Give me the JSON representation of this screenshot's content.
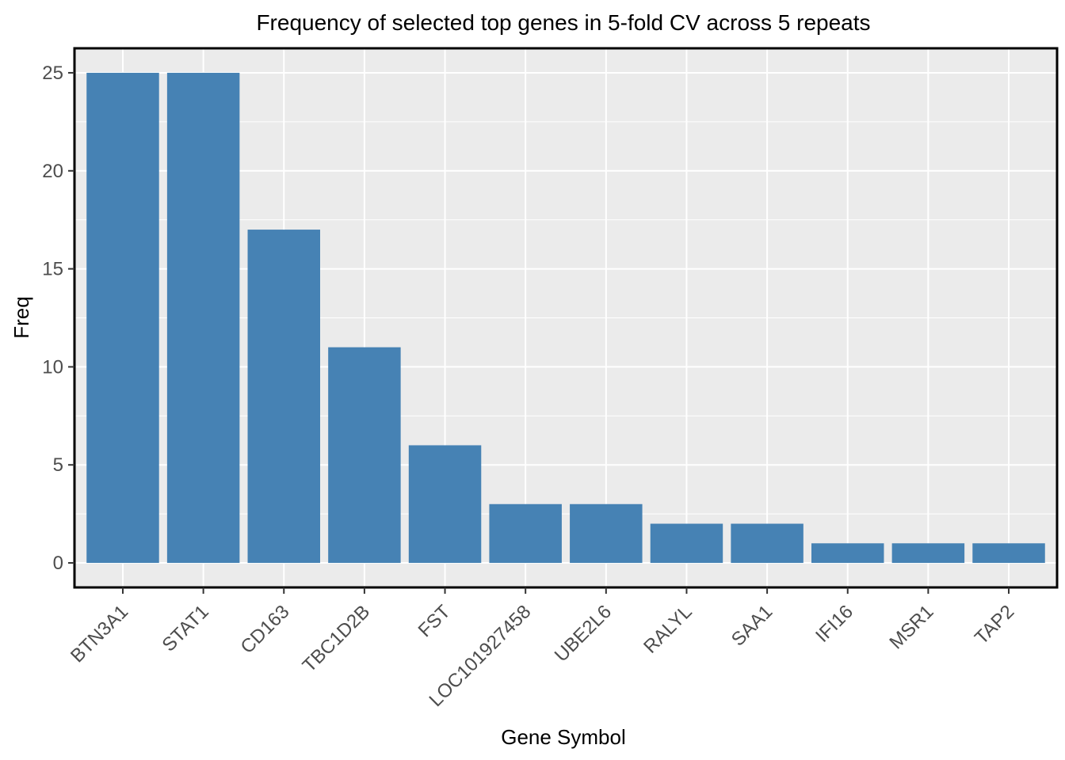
{
  "chart_data": {
    "type": "bar",
    "title": "Frequency of selected top genes in 5-fold CV across 5 repeats",
    "xlabel": "Gene Symbol",
    "ylabel": "Freq",
    "categories": [
      "BTN3A1",
      "STAT1",
      "CD163",
      "TBC1D2B",
      "FST",
      "LOC101927458",
      "UBE2L6",
      "RALYL",
      "SAA1",
      "IFI16",
      "MSR1",
      "TAP2"
    ],
    "values": [
      25,
      25,
      17,
      11,
      6,
      3,
      3,
      2,
      2,
      1,
      1,
      1
    ],
    "ylim": [
      -1.25,
      26.25
    ],
    "yticks": [
      0,
      5,
      10,
      15,
      20,
      25
    ],
    "grid": true,
    "bar_color": "#4682B4",
    "panel_background": "#EBEBEB",
    "grid_color": "#FFFFFF"
  }
}
